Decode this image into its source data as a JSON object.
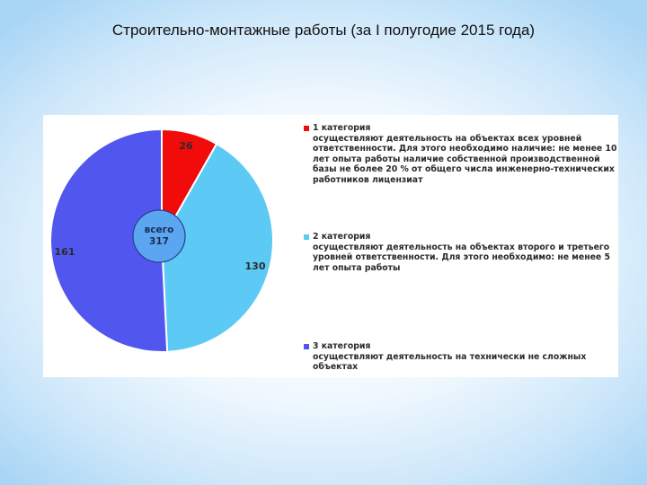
{
  "title": "Строительно-монтажные работы (за I полугодие 2015 года)",
  "colors": {
    "cat1": "#f20b0b",
    "cat2": "#5ccaf5",
    "cat3": "#5157ee",
    "center": "#5aa6f1"
  },
  "chart_data": {
    "type": "pie",
    "title": "",
    "center_label": [
      "всего",
      "317"
    ],
    "total": 317,
    "slices": [
      {
        "label": "1 категория",
        "value": 26
      },
      {
        "label": "2 категория",
        "value": 130
      },
      {
        "label": "3 категория",
        "value": 161
      }
    ],
    "legend_placement": "right"
  },
  "legend": [
    {
      "title": "1 категория",
      "desc": "осуществляют деятельность на объектах всех уровней ответственности. Для этого необходимо наличие: не менее 10 лет опыта работы наличие собственной производственной базы не более 20 % от общего числа инженерно-технических работников лицензиат"
    },
    {
      "title": "2 категория",
      "desc": "осуществляют деятельность на объектах второго и третьего уровней ответственности. Для этого необходимо: не менее 5 лет опыта работы"
    },
    {
      "title": "3 категория",
      "desc": " осуществляют деятельность на технически не сложных объектах"
    }
  ]
}
